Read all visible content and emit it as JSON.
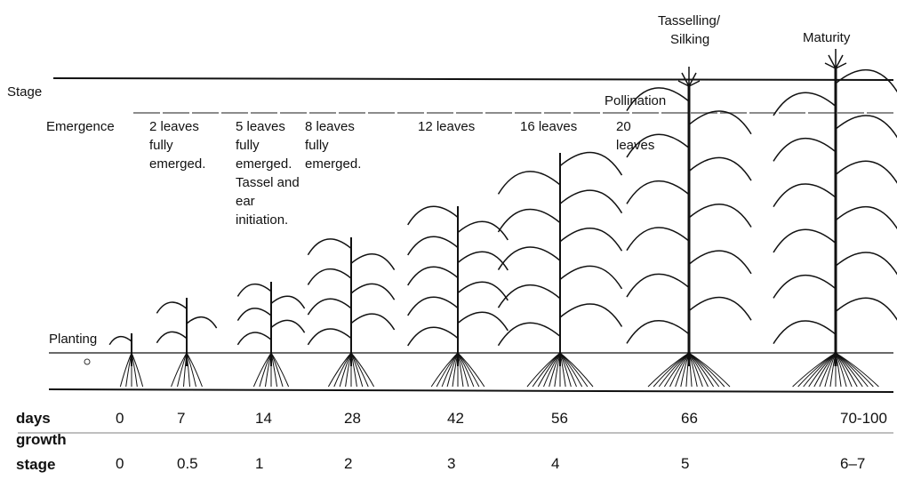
{
  "stage_label": "Stage",
  "tasselling": [
    "Tasselling/",
    "Silking"
  ],
  "maturity": "Maturity",
  "pollination": "Pollination",
  "planting": "Planting",
  "leaf_labels": [
    [
      "Emergence"
    ],
    [
      "2 leaves",
      "fully",
      "emerged."
    ],
    [
      "5 leaves",
      "fully",
      "emerged.",
      "Tassel and",
      "ear",
      "initiation."
    ],
    [
      "8 leaves",
      "fully",
      "emerged."
    ],
    [
      "12 leaves"
    ],
    [
      "16 leaves"
    ],
    [
      "20",
      "leaves"
    ]
  ],
  "row_labels": {
    "days": "days",
    "growth_stage": [
      "growth",
      "stage"
    ]
  },
  "columns": [
    {
      "days": "0",
      "growth_stage": "0"
    },
    {
      "days": "7",
      "growth_stage": "0.5"
    },
    {
      "days": "14",
      "growth_stage": "1"
    },
    {
      "days": "28",
      "growth_stage": "2"
    },
    {
      "days": "42",
      "growth_stage": "3"
    },
    {
      "days": "56",
      "growth_stage": "4"
    },
    {
      "days": "66",
      "growth_stage": "5"
    },
    {
      "days": "70-100",
      "growth_stage": "6–7"
    }
  ]
}
